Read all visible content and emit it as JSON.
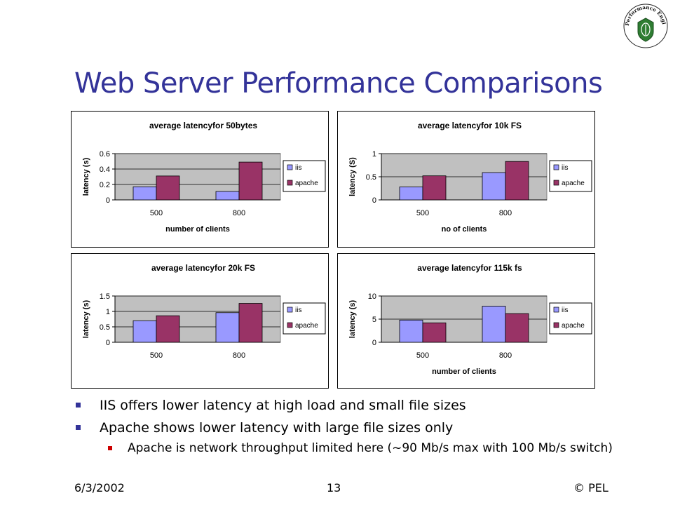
{
  "slide": {
    "title": "Web Server Performance Comparisons",
    "bullets": [
      "IIS offers lower latency at high load and small file sizes",
      "Apache shows lower latency with large file sizes only"
    ],
    "subbullet": "Apache is network throughput limited here (~90 Mb/s max with 100 Mb/s switch)",
    "footer": {
      "date": "6/3/2002",
      "page": "13",
      "credit": "© PEL"
    },
    "logo_text": "Performance Engineering Laboratory"
  },
  "colors": {
    "title": "#333399",
    "iis": "#9999ff",
    "apache": "#993366",
    "plot_bg": "#c0c0c0"
  },
  "chart_data": [
    {
      "type": "bar",
      "title": "average latencyfor 50bytes",
      "xlabel": "number of clients",
      "ylabel": "latency (s)",
      "categories": [
        "500",
        "800"
      ],
      "ylim": [
        0,
        0.6
      ],
      "yticks": [
        "0",
        "0.2",
        "0.4",
        "0.6"
      ],
      "tick_values": [
        0,
        0.2,
        0.4,
        0.6
      ],
      "grid": true,
      "legend": "right",
      "series": [
        {
          "name": "iis",
          "values": [
            0.17,
            0.11
          ]
        },
        {
          "name": "apache",
          "values": [
            0.31,
            0.49
          ]
        }
      ]
    },
    {
      "type": "bar",
      "title": "average latencyfor 10k FS",
      "xlabel": "no of clients",
      "ylabel": "latency (S)",
      "categories": [
        "500",
        "800"
      ],
      "ylim": [
        0,
        1
      ],
      "yticks": [
        "0",
        "0.5",
        "1"
      ],
      "tick_values": [
        0,
        0.5,
        1
      ],
      "grid": true,
      "legend": "right",
      "series": [
        {
          "name": "iis",
          "values": [
            0.28,
            0.59
          ]
        },
        {
          "name": "apache",
          "values": [
            0.52,
            0.83
          ]
        }
      ]
    },
    {
      "type": "bar",
      "title": "average latencyfor 20k FS",
      "xlabel": "",
      "ylabel": "latency (s)",
      "categories": [
        "500",
        "800"
      ],
      "ylim": [
        0,
        1.5
      ],
      "yticks": [
        "0",
        "0.5",
        "1",
        "1.5"
      ],
      "tick_values": [
        0,
        0.5,
        1,
        1.5
      ],
      "grid": true,
      "legend": "right",
      "series": [
        {
          "name": "iis",
          "values": [
            0.7,
            0.96
          ]
        },
        {
          "name": "apache",
          "values": [
            0.86,
            1.26
          ]
        }
      ]
    },
    {
      "type": "bar",
      "title": "average latencyfor 115k fs",
      "xlabel": "number of clients",
      "ylabel": "latency (s)",
      "categories": [
        "500",
        "800"
      ],
      "ylim": [
        0,
        10
      ],
      "yticks": [
        "0",
        "5",
        "10"
      ],
      "tick_values": [
        0,
        5,
        10
      ],
      "grid": true,
      "legend": "right",
      "series": [
        {
          "name": "iis",
          "values": [
            4.8,
            7.8
          ]
        },
        {
          "name": "apache",
          "values": [
            4.2,
            6.2
          ]
        }
      ]
    }
  ]
}
